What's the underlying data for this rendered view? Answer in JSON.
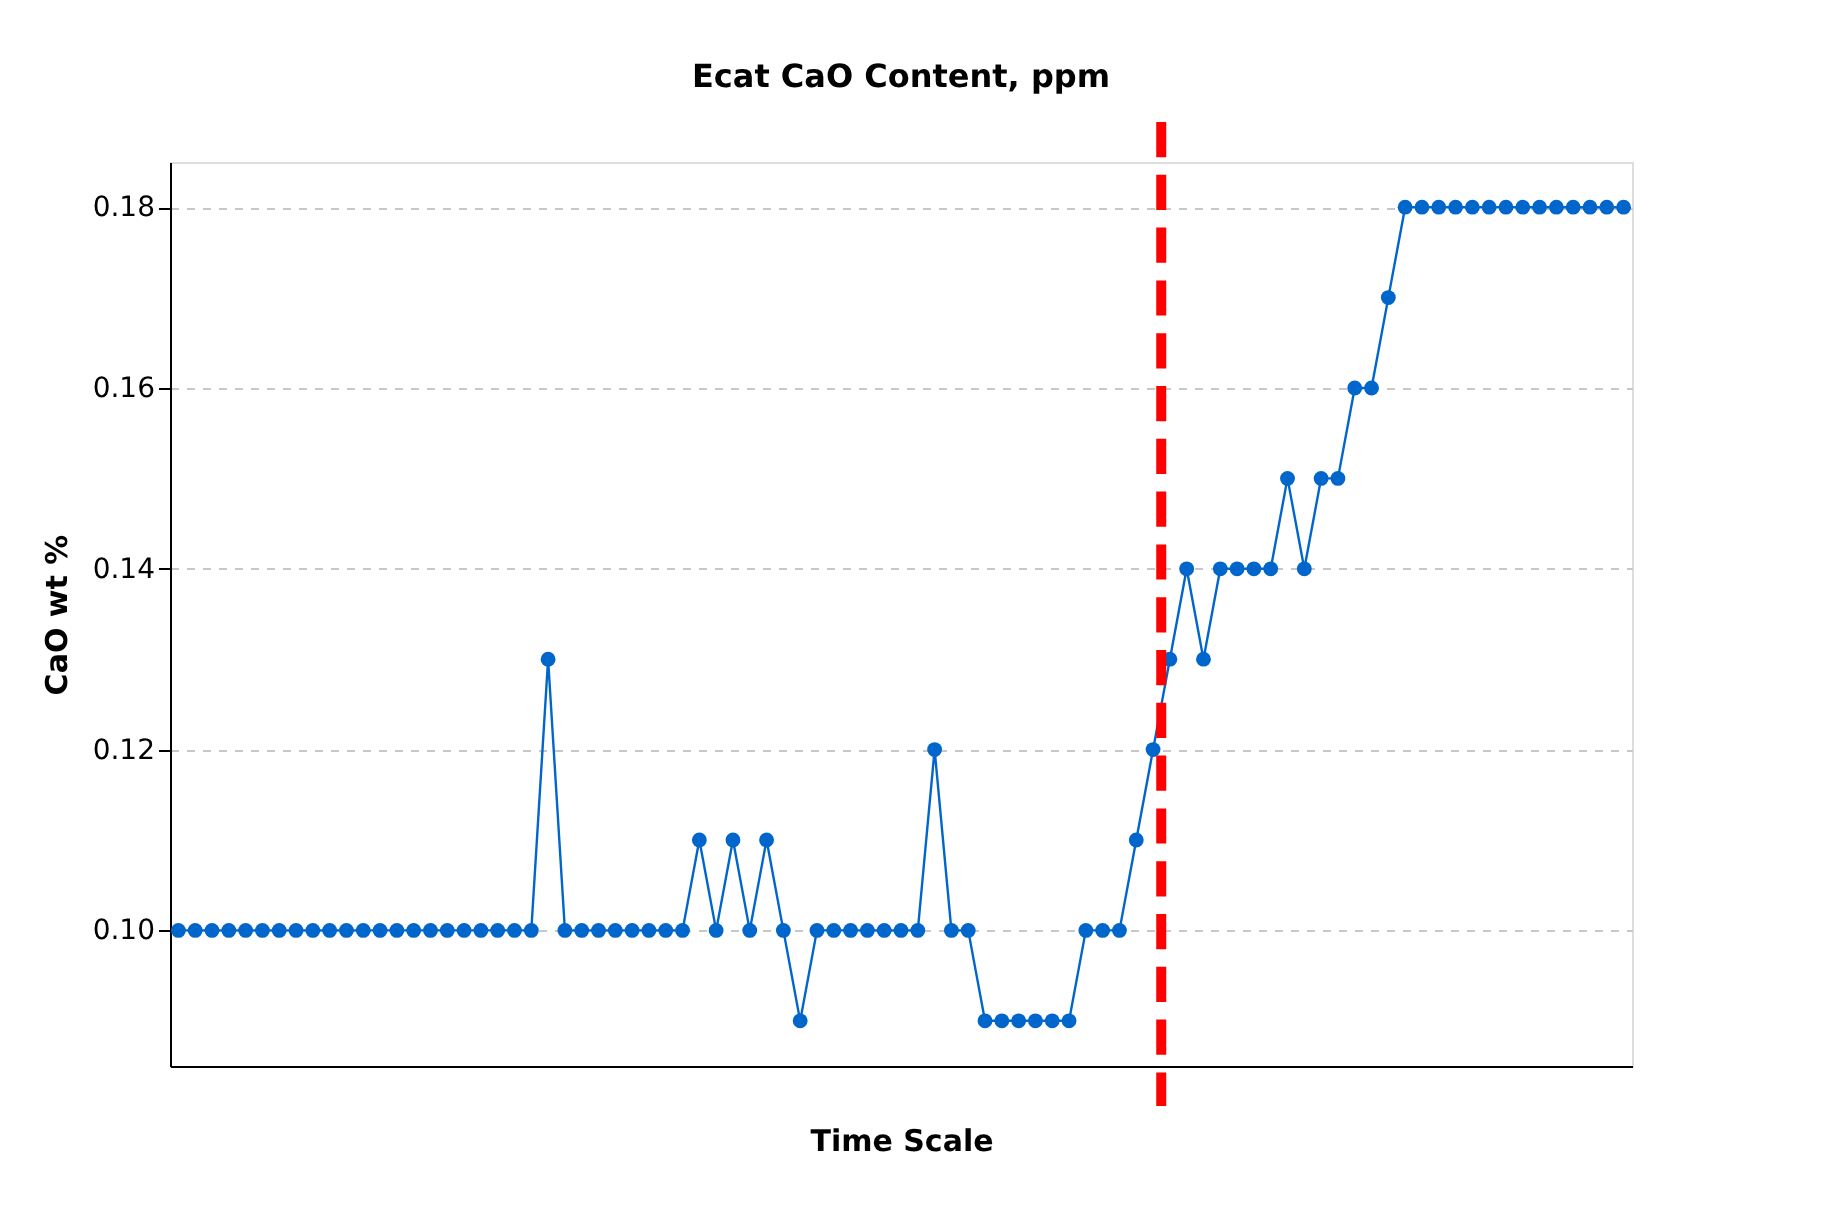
{
  "chart_data": {
    "type": "line",
    "title": "Ecat CaO Content, ppm",
    "xlabel": "Time Scale",
    "ylabel": "CaO wt %",
    "categories": [
      null,
      null,
      null,
      null,
      null,
      null,
      null,
      null,
      null,
      null,
      null,
      null,
      null,
      null,
      null,
      null,
      null,
      null,
      null,
      null,
      null,
      null,
      null,
      null,
      null,
      null,
      null,
      null,
      null,
      null,
      null,
      null,
      null,
      null,
      null,
      null,
      null,
      null,
      null,
      null,
      null,
      null,
      null,
      null,
      null,
      null,
      null,
      null,
      null,
      null,
      null,
      null,
      null,
      null,
      null,
      null,
      null,
      null,
      null,
      null,
      null,
      null,
      null,
      null,
      null,
      null,
      null,
      null,
      null,
      null,
      null,
      null,
      null,
      null,
      null,
      null,
      null,
      null,
      null,
      null,
      null,
      null,
      null,
      null,
      null,
      null,
      null
    ],
    "series": [
      {
        "color": "#0066cc",
        "values": [
          0.1,
          0.1,
          0.1,
          0.1,
          0.1,
          0.1,
          0.1,
          0.1,
          0.1,
          0.1,
          0.1,
          0.1,
          0.1,
          0.1,
          0.1,
          0.1,
          0.1,
          0.1,
          0.1,
          0.1,
          0.1,
          0.1,
          0.13,
          0.1,
          0.1,
          0.1,
          0.1,
          0.1,
          0.1,
          0.1,
          0.1,
          0.11,
          0.1,
          0.11,
          0.1,
          0.11,
          0.1,
          0.09,
          0.1,
          0.1,
          0.1,
          0.1,
          0.1,
          0.1,
          0.1,
          0.12,
          0.1,
          0.1,
          0.09,
          0.09,
          0.09,
          0.09,
          0.09,
          0.09,
          0.1,
          0.1,
          0.1,
          0.11,
          0.12,
          0.13,
          0.14,
          0.13,
          0.14,
          0.14,
          0.14,
          0.14,
          0.15,
          0.14,
          0.15,
          0.15,
          0.16,
          0.16,
          0.17,
          0.18,
          0.18,
          0.18,
          0.18,
          0.18,
          0.18,
          0.18,
          0.18,
          0.18,
          0.18,
          0.18,
          0.18,
          0.18,
          0.18
        ]
      }
    ],
    "ylim": [
      0.085,
      0.185
    ],
    "yticks": [
      {
        "value": 0.1,
        "label": "0.10"
      },
      {
        "value": 0.12,
        "label": "0.12"
      },
      {
        "value": 0.14,
        "label": "0.14"
      },
      {
        "value": 0.16,
        "label": "0.16"
      },
      {
        "value": 0.18,
        "label": "0.18"
      }
    ],
    "grid": "y",
    "marker": "circle",
    "line_style": "solid",
    "tick_labels": "y"
  }
}
